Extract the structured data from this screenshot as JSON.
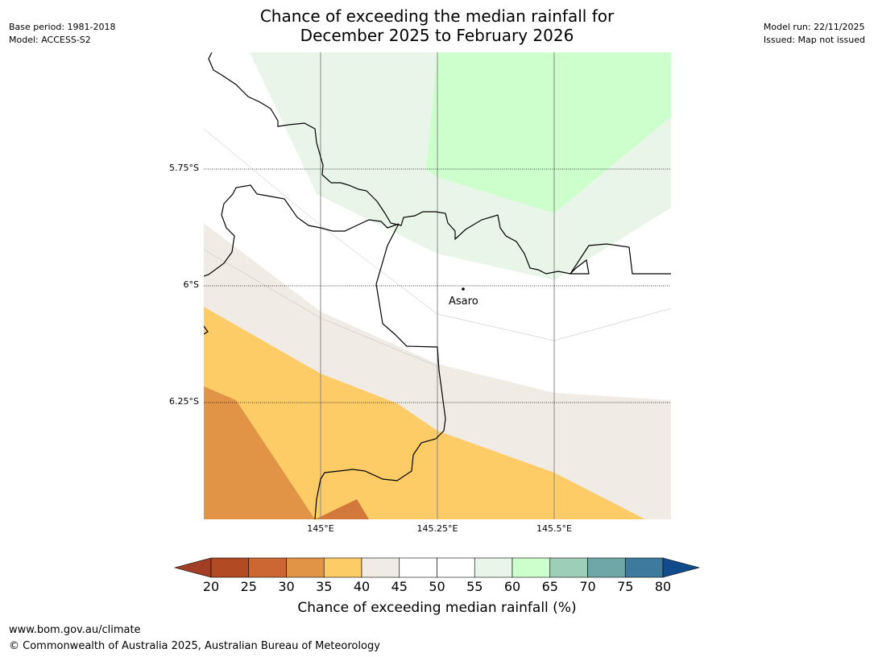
{
  "title": {
    "line1": "Chance of exceeding the median rainfall for",
    "line2": "December 2025 to February 2026"
  },
  "meta_left": {
    "base_period": "Base period: 1981-2018",
    "model": "Model: ACCESS-S2"
  },
  "meta_right": {
    "model_run": "Model run: 22/11/2025",
    "issued": "Issued: Map not issued"
  },
  "map": {
    "lat_ticks": [
      "5.75°S",
      "6°S",
      "6.25°S"
    ],
    "lon_ticks": [
      "145°E",
      "145.25°E",
      "145.5°E"
    ],
    "place": {
      "name": "Asaro",
      "lon": 145.29,
      "lat": -6.01
    },
    "bounds": {
      "lon_min": 144.75,
      "lon_max": 145.75,
      "lat_max": -5.5,
      "lat_min": -6.5
    }
  },
  "colorbar": {
    "labels": [
      "20",
      "25",
      "30",
      "35",
      "40",
      "45",
      "50",
      "55",
      "60",
      "65",
      "70",
      "75",
      "80"
    ],
    "colors": [
      "#a23d26",
      "#b24a24",
      "#cc6633",
      "#e19446",
      "#fecc66",
      "#f0ebe5",
      "#ffffff",
      "#ffffff",
      "#e9f5e9",
      "#ccffcc",
      "#9dcfb8",
      "#6fa6a6",
      "#3e7a9d",
      "#124b8b"
    ],
    "title": "Chance of exceeding median rainfall (%)"
  },
  "footer": {
    "url": "www.bom.gov.au/climate",
    "copyright": "© Commonwealth of Australia 2025, Australian Bureau of Meteorology"
  }
}
